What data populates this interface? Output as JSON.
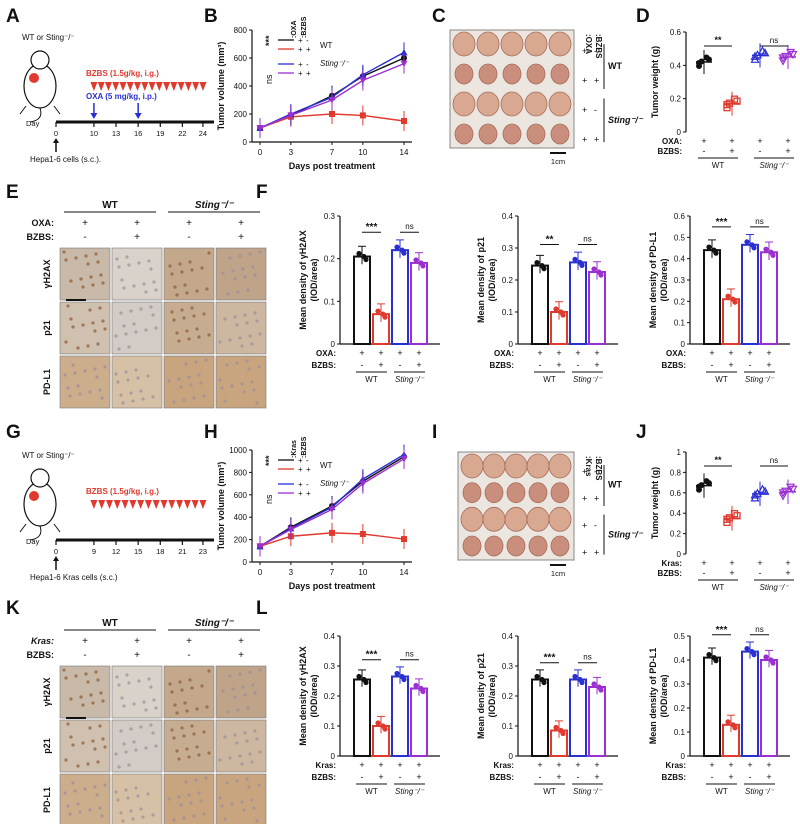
{
  "panels": {
    "A": "A",
    "B": "B",
    "C": "C",
    "D": "D",
    "E": "E",
    "F": "F",
    "G": "G",
    "H": "H",
    "I": "I",
    "J": "J",
    "K": "K",
    "L": "L"
  },
  "schemeA": {
    "mouse_label": "WT or Sting⁻/⁻",
    "drug1": "BZBS (1.5g/kg, i.g.)",
    "drug2": "OXA (5 mg/kg, i.p.)",
    "day_label": "Day",
    "ticks": [
      "0",
      "10",
      "13",
      "16",
      "19",
      "22",
      "24"
    ],
    "cells": "Hepa1-6 cells (s.c.)."
  },
  "schemeG": {
    "mouse_label": "WT or Sting⁻/⁻",
    "drug1": "BZBS (1.5g/kg, i.g.)",
    "day_label": "Day",
    "ticks": [
      "0",
      "9",
      "12",
      "15",
      "18",
      "21",
      "23"
    ],
    "cells": "Hepa1-6 Kras cells (s.c.)"
  },
  "common": {
    "wt": "WT",
    "sting": "Sting⁻/⁻",
    "oxa": "OXA:",
    "bzbs": "BZBS:",
    "kras": "Kras:",
    "plus": "+",
    "minus": "-",
    "ns": "ns",
    "stars3": "***",
    "stars2": "**",
    "scale_bar": "1cm",
    "oxa_head": ":OXA",
    "bzbs_head": ":BZBS",
    "kras_head": ":Kras",
    "ihc_rows": [
      "γH2AX",
      "p21",
      "PD-L1"
    ]
  },
  "colors": {
    "black": "#111111",
    "red": "#e03a2f",
    "blue": "#2a2fd0",
    "purple": "#9b2fd0"
  },
  "chart_data": [
    {
      "id": "B",
      "type": "line",
      "xlabel": "Days post treatment",
      "ylabel": "Tumor volume (mm³)",
      "x": [
        0,
        3,
        7,
        10,
        14
      ],
      "ylim": [
        0,
        800
      ],
      "yticks": [
        0,
        200,
        400,
        600,
        800
      ],
      "series": [
        {
          "name": "WT OXA+ BZBS-",
          "values": [
            100,
            190,
            330,
            470,
            600
          ]
        },
        {
          "name": "WT OXA+ BZBS+",
          "values": [
            100,
            180,
            200,
            190,
            150
          ]
        },
        {
          "name": "Sting OXA+ BZBS-",
          "values": [
            100,
            200,
            320,
            480,
            640
          ]
        },
        {
          "name": "Sting OXA+ BZBS+",
          "values": [
            100,
            190,
            300,
            440,
            560
          ]
        }
      ]
    },
    {
      "id": "D",
      "type": "scatter",
      "ylabel": "Tumor weight (g)",
      "ylim": [
        0,
        0.6
      ],
      "yticks": [
        0,
        0.2,
        0.4,
        0.6
      ],
      "groups": [
        "WT OXA+ BZBS-",
        "WT OXA+ BZBS+",
        "Sting OXA+ BZBS-",
        "Sting OXA+ BZBS+"
      ],
      "means": [
        0.42,
        0.17,
        0.46,
        0.45
      ]
    },
    {
      "id": "F1",
      "type": "bar",
      "ylabel": "Mean density of γH2AX (IOD/area)",
      "ylim": [
        0,
        0.3
      ],
      "yticks": [
        0,
        0.1,
        0.2,
        0.3
      ],
      "values": [
        0.205,
        0.07,
        0.22,
        0.19
      ]
    },
    {
      "id": "F2",
      "type": "bar",
      "ylabel": "Mean density of p21 (IOD/area)",
      "ylim": [
        0,
        0.4
      ],
      "yticks": [
        0,
        0.1,
        0.2,
        0.3,
        0.4
      ],
      "values": [
        0.245,
        0.1,
        0.255,
        0.225
      ]
    },
    {
      "id": "F3",
      "type": "bar",
      "ylabel": "Mean density of PD-L1 (IOD/area)",
      "ylim": [
        0,
        0.6
      ],
      "yticks": [
        0,
        0.1,
        0.2,
        0.3,
        0.4,
        0.5,
        0.6
      ],
      "values": [
        0.44,
        0.21,
        0.465,
        0.43
      ]
    },
    {
      "id": "H",
      "type": "line",
      "xlabel": "Days post treatment",
      "ylabel": "Tumor volume (mm³)",
      "x": [
        0,
        3,
        7,
        10,
        14
      ],
      "ylim": [
        0,
        1000
      ],
      "yticks": [
        0,
        200,
        400,
        600,
        800,
        1000
      ],
      "series": [
        {
          "name": "WT Kras+ BZBS-",
          "values": [
            140,
            310,
            500,
            720,
            940
          ]
        },
        {
          "name": "WT Kras+ BZBS+",
          "values": [
            140,
            230,
            260,
            250,
            205
          ]
        },
        {
          "name": "Sting Kras+ BZBS-",
          "values": [
            140,
            300,
            490,
            740,
            960
          ]
        },
        {
          "name": "Sting Kras+ BZBS+",
          "values": [
            140,
            290,
            470,
            700,
            920
          ]
        }
      ]
    },
    {
      "id": "J",
      "type": "scatter",
      "ylabel": "Tumor weight (g)",
      "ylim": [
        0,
        1.0
      ],
      "yticks": [
        0,
        0.2,
        0.4,
        0.6,
        0.8,
        1.0
      ],
      "groups": [
        "WT Kras+ BZBS-",
        "WT Kras+ BZBS+",
        "Sting Kras+ BZBS-",
        "Sting Kras+ BZBS+"
      ],
      "means": [
        0.67,
        0.35,
        0.59,
        0.61
      ]
    },
    {
      "id": "L1",
      "type": "bar",
      "ylabel": "Mean density of γH2AX (IOD/area)",
      "ylim": [
        0,
        0.4
      ],
      "yticks": [
        0,
        0.1,
        0.2,
        0.3,
        0.4
      ],
      "values": [
        0.255,
        0.1,
        0.265,
        0.225
      ]
    },
    {
      "id": "L2",
      "type": "bar",
      "ylabel": "Mean density of p21 (IOD/area)",
      "ylim": [
        0,
        0.4
      ],
      "yticks": [
        0,
        0.1,
        0.2,
        0.3,
        0.4
      ],
      "values": [
        0.255,
        0.085,
        0.255,
        0.23
      ]
    },
    {
      "id": "L3",
      "type": "bar",
      "ylabel": "Mean density of PD-L1 (IOD/area)",
      "ylim": [
        0,
        0.5
      ],
      "yticks": [
        0,
        0.1,
        0.2,
        0.3,
        0.4,
        0.5
      ],
      "values": [
        0.41,
        0.13,
        0.435,
        0.4
      ]
    }
  ]
}
